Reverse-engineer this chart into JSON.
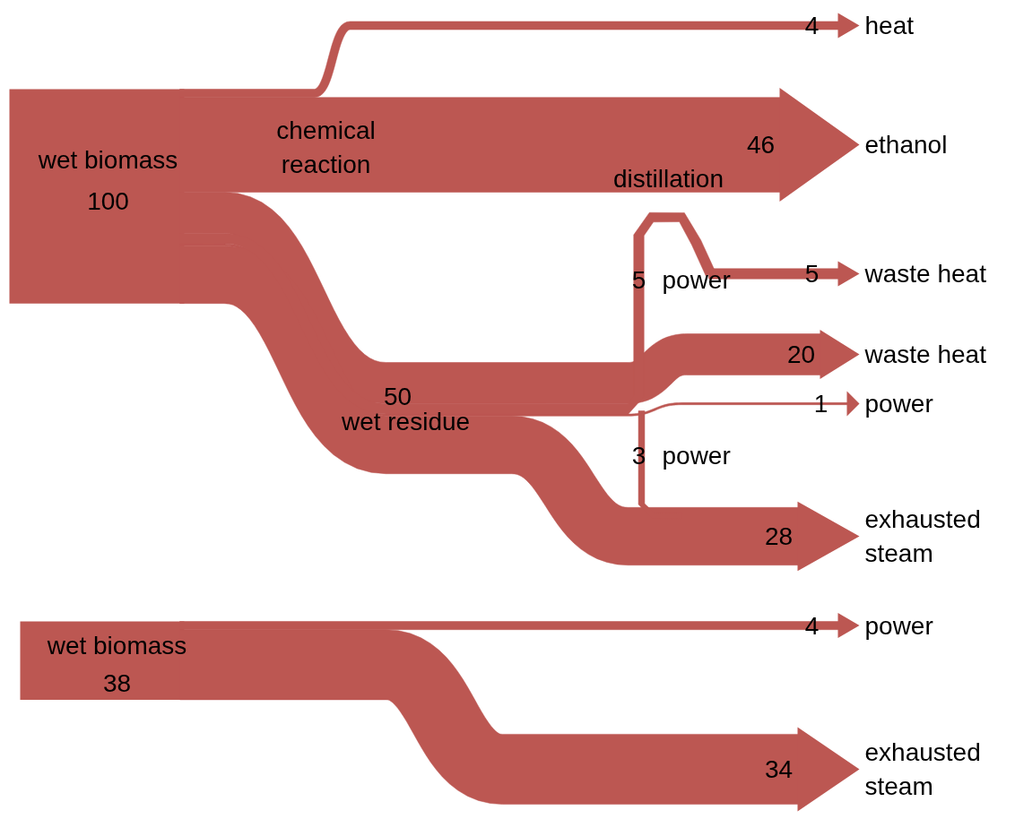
{
  "chart_data": {
    "type": "other",
    "categories": [
      "heat",
      "ethanol",
      "waste heat",
      "waste heat",
      "power",
      "exhausted steam",
      "power",
      "power",
      "power",
      "exhausted steam"
    ],
    "values": [
      4,
      46,
      5,
      20,
      1,
      28,
      5,
      3,
      4,
      34
    ],
    "color": "#bc5752",
    "data_labels": true,
    "annotations": [
      "wet biomass",
      "100",
      "chemical reaction",
      "distillation",
      "50",
      "wet residue",
      "wet biomass",
      "38"
    ]
  }
}
